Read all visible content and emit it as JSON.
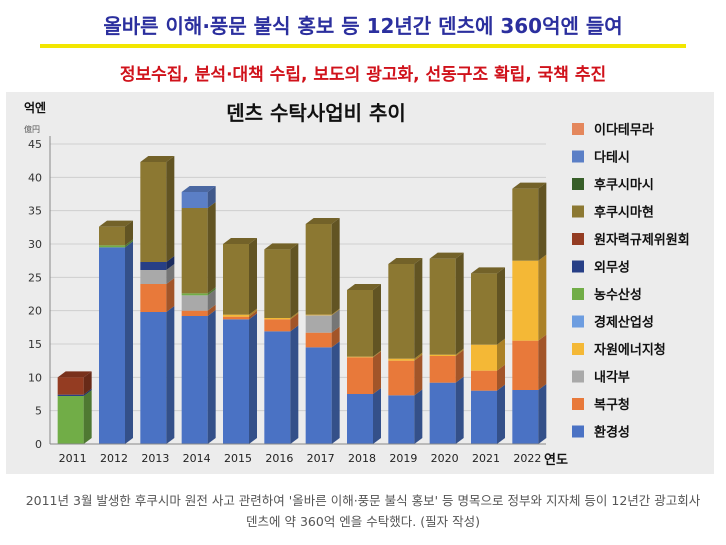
{
  "headline": "올바른 이해·풍문 불식 홍보 등 12년간 덴츠에 360억엔 들여",
  "subheadline": "정보수집, 분석·대책 수립, 보도의 광고화, 선동구조 확립, 국책 추진",
  "caption": "2011년 3월 발생한 후쿠시마 원전 사고 관련하여 '올바른 이해·풍문 불식 홍보' 등 명목으로 정부와 지자체 등이 12년간 광고회사 덴츠에 약 360억 엔을 수탁했다. (필자 작성)",
  "colors": {
    "headline": "#2b2f9e",
    "subheadline": "#d0121b",
    "rule": "#f2e600",
    "plot_bg": "#ececec"
  },
  "chart_data": {
    "type": "bar",
    "stacked": true,
    "title": "덴츠 수탁사업비 추이",
    "ylabel": "억엔",
    "ylabel_sub": "億円",
    "xlabel": "연도",
    "ylim": [
      0,
      45
    ],
    "yticks": [
      0,
      5,
      10,
      15,
      20,
      25,
      30,
      35,
      40,
      45
    ],
    "grid": true,
    "legend_position": "right",
    "categories": [
      "2011",
      "2012",
      "2013",
      "2014",
      "2015",
      "2016",
      "2017",
      "2018",
      "2019",
      "2020",
      "2021",
      "2022"
    ],
    "series": [
      {
        "name": "환경성",
        "color": "#4a72c4",
        "values": [
          0,
          29.5,
          19.8,
          19.2,
          18.7,
          16.9,
          14.5,
          7.5,
          7.3,
          9.2,
          8.0,
          8.1
        ]
      },
      {
        "name": "복구청",
        "color": "#e8793a",
        "values": [
          0,
          0,
          4.2,
          0.8,
          0.4,
          1.8,
          2.2,
          5.5,
          5.2,
          4.0,
          3.0,
          7.4
        ]
      },
      {
        "name": "내각부",
        "color": "#a9a9a9",
        "values": [
          0,
          0,
          2.1,
          2.3,
          0,
          0,
          2.6,
          0,
          0,
          0,
          0,
          0
        ]
      },
      {
        "name": "자원에너지청",
        "color": "#f4b836",
        "values": [
          0,
          0,
          0,
          0,
          0.3,
          0.2,
          0.1,
          0.1,
          0.3,
          0.2,
          3.9,
          12.0
        ]
      },
      {
        "name": "경제산업성",
        "color": "#6d9de0",
        "values": [
          0,
          0,
          0,
          0,
          0,
          0,
          0,
          0,
          0,
          0,
          0,
          0
        ]
      },
      {
        "name": "농수산성",
        "color": "#71ad47",
        "values": [
          7.2,
          0.3,
          0,
          0.3,
          0,
          0,
          0,
          0,
          0,
          0,
          0,
          0
        ]
      },
      {
        "name": "외무성",
        "color": "#273f86",
        "values": [
          0.2,
          0,
          1.2,
          0,
          0,
          0,
          0,
          0,
          0,
          0,
          0,
          0
        ]
      },
      {
        "name": "원자력규제위원회",
        "color": "#943c22",
        "values": [
          2.6,
          0,
          0,
          0,
          0,
          0,
          0,
          0,
          0,
          0,
          0,
          0
        ]
      },
      {
        "name": "후쿠시마현",
        "color": "#8c7832",
        "values": [
          0,
          2.8,
          15.0,
          12.8,
          10.6,
          10.3,
          13.6,
          10.0,
          14.2,
          14.4,
          10.7,
          10.8
        ]
      },
      {
        "name": "후쿠시마시",
        "color": "#375e28",
        "values": [
          0,
          0,
          0,
          0,
          0,
          0,
          0,
          0,
          0,
          0,
          0,
          0
        ]
      },
      {
        "name": "다테시",
        "color": "#5b7fc6",
        "values": [
          0,
          0,
          0,
          2.4,
          0,
          0,
          0,
          0,
          0,
          0,
          0,
          0
        ]
      },
      {
        "name": "이다테무라",
        "color": "#e4875c",
        "values": [
          0,
          0,
          0,
          0,
          0,
          0,
          0,
          0,
          0,
          0,
          0,
          0
        ]
      }
    ],
    "legend_order": [
      "이다테무라",
      "다테시",
      "후쿠시마시",
      "후쿠시마현",
      "원자력규제위원회",
      "외무성",
      "농수산성",
      "경제산업성",
      "자원에너지청",
      "내각부",
      "복구청",
      "환경성"
    ]
  }
}
